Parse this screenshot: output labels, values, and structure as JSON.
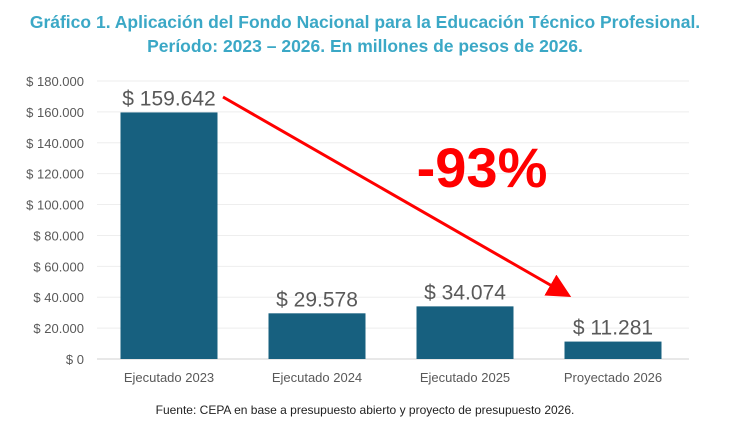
{
  "title_line1": "Gráfico 1. Aplicación del Fondo Nacional para la Educación Técnico Profesional.",
  "title_line2": "Período: 2023 – 2026. En millones de pesos de 2026.",
  "source": "Fuente: CEPA en base a presupuesto abierto y proyecto de presupuesto 2026.",
  "chart_data": {
    "type": "bar",
    "title": "Gráfico 1. Aplicación del Fondo Nacional para la Educación Técnico Profesional. Período: 2023 – 2026. En millones de pesos de 2026.",
    "categories": [
      "Ejecutado 2023",
      "Ejecutado 2024",
      "Ejecutado 2025",
      "Proyectado 2026"
    ],
    "values": [
      159642,
      29578,
      34074,
      11281
    ],
    "data_labels": [
      "$ 159.642",
      "$ 29.578",
      "$ 34.074",
      "$ 11.281"
    ],
    "ylim": [
      0,
      180000
    ],
    "yticks": [
      0,
      20000,
      40000,
      60000,
      80000,
      100000,
      120000,
      140000,
      160000,
      180000
    ],
    "ytick_labels": [
      "$ 0",
      "$ 20.000",
      "$ 40.000",
      "$ 60.000",
      "$ 80.000",
      "$ 100.000",
      "$ 120.000",
      "$ 140.000",
      "$ 160.000",
      "$ 180.000"
    ],
    "grid": true,
    "annotation": "-93%",
    "bar_color": "#17607f",
    "arrow_color": "#ff0000"
  }
}
